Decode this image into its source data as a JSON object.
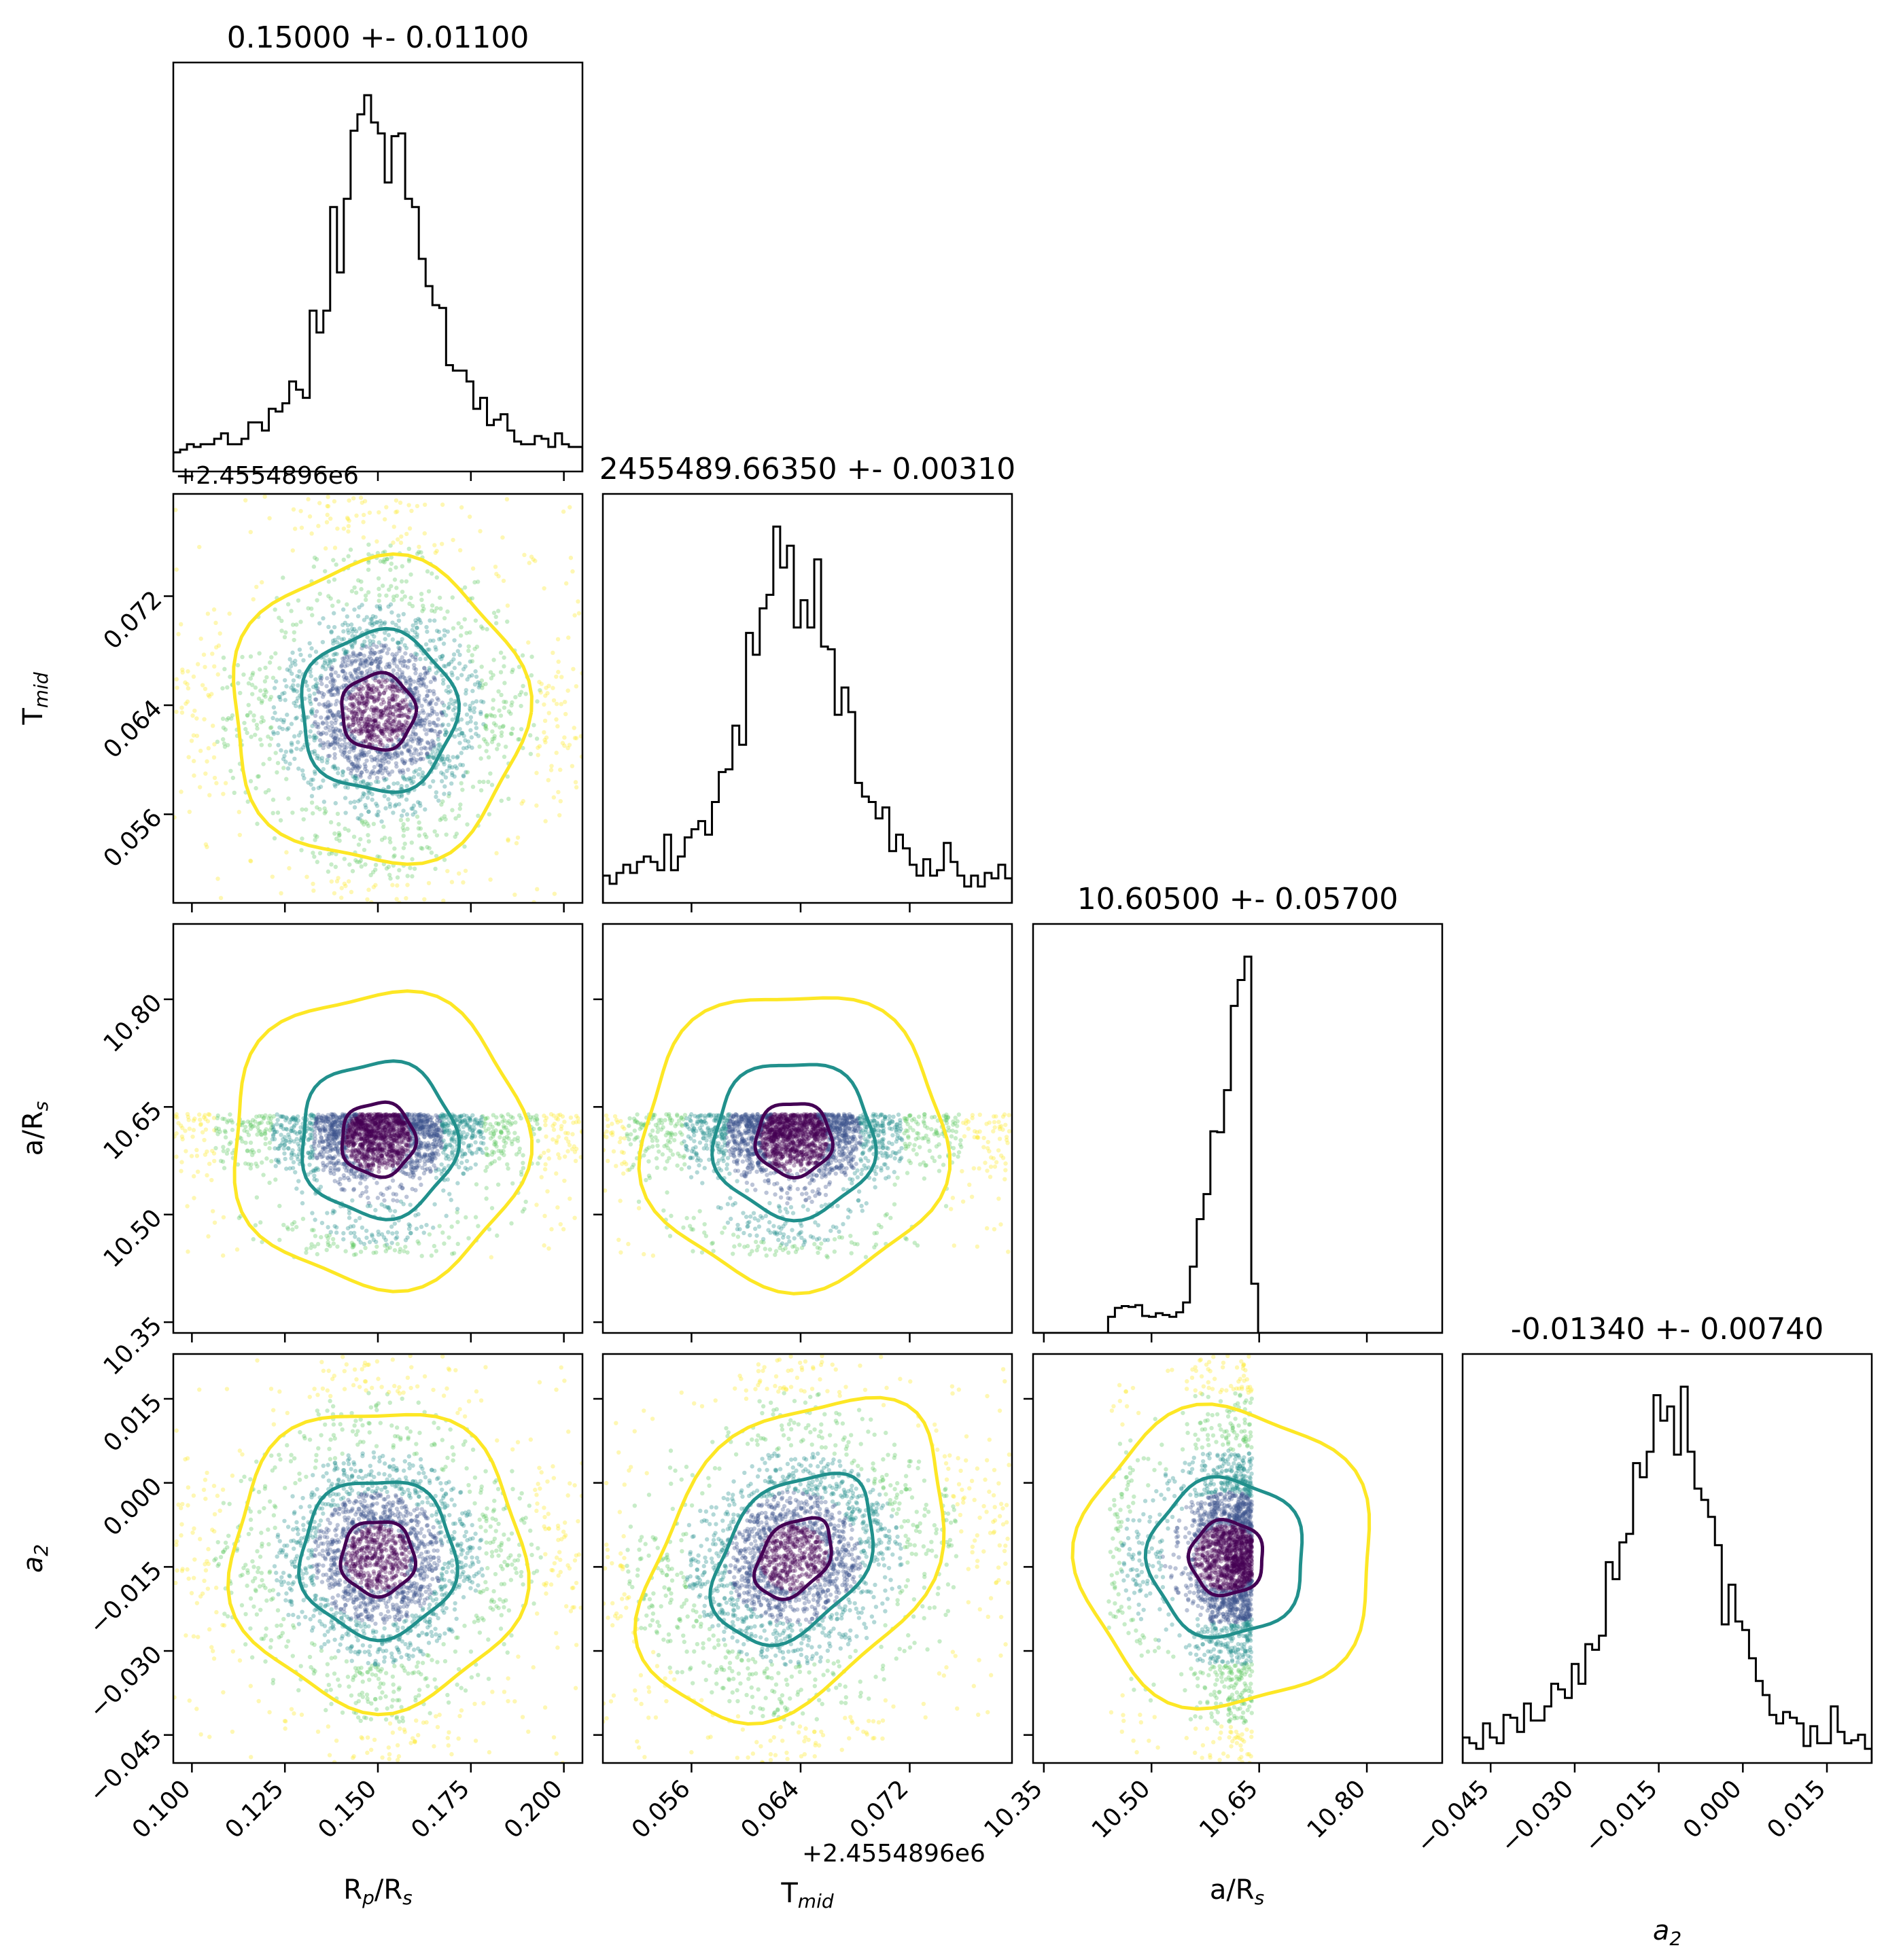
{
  "chart_data": {
    "type": "corner",
    "kind": "corner-plot (2D scatter + contour panels, 1D histograms on diagonal)",
    "parameters": [
      {
        "id": "rp",
        "label_main": "R",
        "label_sub": "p",
        "label_tail": "/R",
        "label_sub2": "s",
        "title": "0.15000 +- 0.01100",
        "median": 0.15,
        "sigma": 0.011,
        "range": [
          0.095,
          0.205
        ],
        "ticks": [
          0.1,
          0.125,
          0.15,
          0.175,
          0.2
        ],
        "tick_labels": [
          "0.100",
          "0.125",
          "0.150",
          "0.175",
          "0.200"
        ],
        "offset_text": "",
        "hist_shape": "peaked"
      },
      {
        "id": "tmid",
        "label_main": "T",
        "label_sub": "mid",
        "label_tail": "",
        "label_sub2": "",
        "title": "2455489.66350 +- 0.00310",
        "median": 0.0635,
        "sigma": 0.0031,
        "range": [
          0.0495,
          0.0795
        ],
        "ticks": [
          0.056,
          0.064,
          0.072
        ],
        "tick_labels": [
          "0.056",
          "0.064",
          "0.072"
        ],
        "offset_text": "+2.4554896e6",
        "hist_shape": "peaked"
      },
      {
        "id": "ars",
        "label_main": "a/R",
        "label_sub": "s",
        "label_tail": "",
        "label_sub2": "",
        "title": "10.60500 +- 0.05700",
        "median": 10.605,
        "sigma": 0.057,
        "range": [
          10.335,
          10.905
        ],
        "ticks": [
          10.35,
          10.5,
          10.65,
          10.8
        ],
        "tick_labels": [
          "10.35",
          "10.50",
          "10.65",
          "10.80"
        ],
        "offset_text": "",
        "hist_shape": "truncated",
        "support": [
          10.44,
          10.64
        ]
      },
      {
        "id": "a2",
        "label_main": "a",
        "label_sub": "2",
        "label_tail": "",
        "label_sub2": "",
        "label_italic": true,
        "title": "-0.01340 +- 0.00740",
        "median": -0.0134,
        "sigma": 0.0074,
        "range": [
          -0.05,
          0.023
        ],
        "ticks": [
          -0.045,
          -0.03,
          -0.015,
          0.0,
          0.015
        ],
        "tick_labels": [
          "−0.045",
          "−0.030",
          "−0.015",
          "0.000",
          "0.015"
        ],
        "offset_text": "",
        "hist_shape": "peaked"
      }
    ],
    "contour_colors": [
      "#440154",
      "#21908c",
      "#fde725"
    ],
    "scatter_colors": [
      "#440154",
      "#3b528b",
      "#21908c",
      "#5ec962",
      "#fde725"
    ],
    "hist_color": "#000000",
    "grid": false,
    "legend": "none"
  }
}
